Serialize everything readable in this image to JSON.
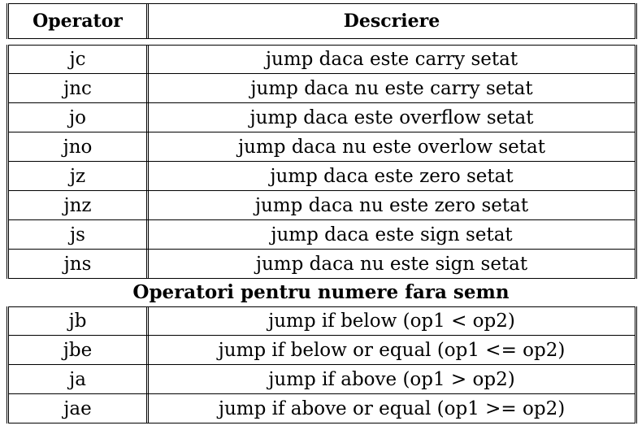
{
  "header": {
    "col_operator": "Operator",
    "col_description": "Descriere"
  },
  "signed_rows": [
    {
      "op": "jc",
      "desc": "jump daca este carry setat"
    },
    {
      "op": "jnc",
      "desc": "jump daca nu este carry setat"
    },
    {
      "op": "jo",
      "desc": "jump daca este overflow setat"
    },
    {
      "op": "jno",
      "desc": "jump daca nu este overlow setat"
    },
    {
      "op": "jz",
      "desc": "jump daca este zero setat"
    },
    {
      "op": "jnz",
      "desc": "jump daca nu este zero setat"
    },
    {
      "op": "js",
      "desc": "jump daca este sign setat"
    },
    {
      "op": "jns",
      "desc": "jump daca nu este sign setat"
    }
  ],
  "section_title": "Operatori pentru numere fara semn",
  "unsigned_rows": [
    {
      "op": "jb",
      "desc": "jump if below (op1 < op2)"
    },
    {
      "op": "jbe",
      "desc": "jump if below or equal (op1 <= op2)"
    },
    {
      "op": "ja",
      "desc": "jump if above (op1 > op2)"
    },
    {
      "op": "jae",
      "desc": "jump if above or equal (op1 >= op2)"
    }
  ]
}
